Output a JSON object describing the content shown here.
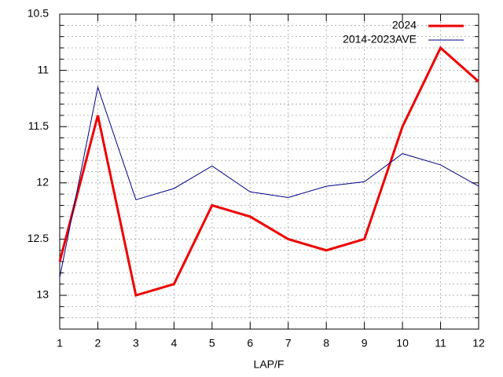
{
  "chart_data": {
    "type": "line",
    "xlabel": "LAP/F",
    "x": [
      1,
      2,
      3,
      4,
      5,
      6,
      7,
      8,
      9,
      10,
      11,
      12
    ],
    "series": [
      {
        "name": "2024",
        "color": "#ee0000",
        "values": [
          12.7,
          11.4,
          13.0,
          12.9,
          12.2,
          12.3,
          12.5,
          12.6,
          12.5,
          11.5,
          10.8,
          11.1
        ]
      },
      {
        "name": "2014-2023AVE",
        "color": "#00008b",
        "values": [
          12.84,
          11.15,
          12.15,
          12.05,
          11.85,
          12.08,
          12.13,
          12.03,
          11.99,
          11.74,
          11.84,
          12.03
        ]
      }
    ],
    "xlim": [
      1,
      12
    ],
    "xticks": [
      1,
      2,
      3,
      4,
      5,
      6,
      7,
      8,
      9,
      10,
      11,
      12
    ],
    "ylim": [
      13.3,
      10.5
    ],
    "yticks": [
      10.5,
      11,
      11.5,
      12,
      12.5,
      13
    ],
    "yminorticks": [
      10.6,
      10.7,
      10.8,
      10.9,
      11.1,
      11.2,
      11.3,
      11.4,
      11.6,
      11.7,
      11.8,
      11.9,
      12.1,
      12.2,
      12.3,
      12.4,
      12.6,
      12.7,
      12.8,
      12.9,
      13.1,
      13.2
    ],
    "grid": true,
    "legend": "top-right"
  }
}
